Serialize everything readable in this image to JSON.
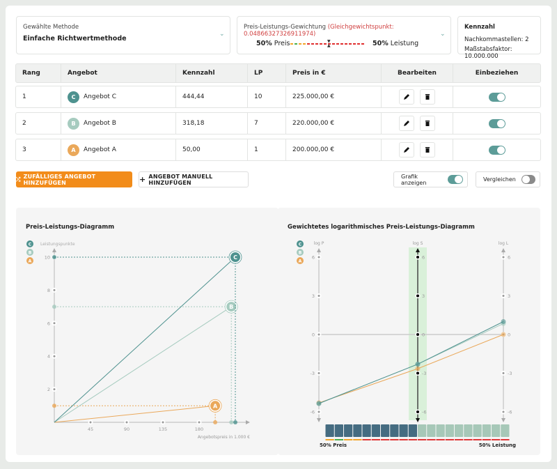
{
  "method": {
    "label": "Gewählte Methode",
    "value": "Einfache Richtwertmethode"
  },
  "weighting": {
    "label": "Preis-Leistungs-Gewichtung",
    "equilibrium": "(Gleichgewichtspunkt: 0.04866327326911974)",
    "price_pct": "50%",
    "price_label": "Preis",
    "perf_pct": "50%",
    "perf_label": "Leistung",
    "slider_value": 0.5
  },
  "kennzahl": {
    "title": "Kennzahl",
    "decimals": "Nachkommastellen: 2",
    "scale": "Maßstabsfaktor: 10.000.000"
  },
  "table": {
    "headers": [
      "Rang",
      "Angebot",
      "Kennzahl",
      "LP",
      "Preis in €",
      "Bearbeiten",
      "Einbeziehen"
    ],
    "rows": [
      {
        "rank": "1",
        "letter": "C",
        "name": "Angebot C",
        "kennzahl": "444,44",
        "lp": "10",
        "price": "225.000,00 €",
        "include": true,
        "color": "#4e928f"
      },
      {
        "rank": "2",
        "letter": "B",
        "name": "Angebot B",
        "kennzahl": "318,18",
        "lp": "7",
        "price": "220.000,00 €",
        "include": true,
        "color": "#a6cbbf"
      },
      {
        "rank": "3",
        "letter": "A",
        "name": "Angebot A",
        "kennzahl": "50,00",
        "lp": "1",
        "price": "200.000,00 €",
        "include": true,
        "color": "#eaa85a"
      }
    ]
  },
  "actions": {
    "random_label": "ZUFÄLLIGES ANGEBOT HINZUFÜGEN",
    "manual_label": "ANGEBOT MANUELL HINZUFÜGEN",
    "show_chart_label": "Grafik anzeigen",
    "show_chart_on": true,
    "compare_label": "Vergleichen",
    "compare_on": false
  },
  "colors": {
    "accent": "#f28c1a",
    "teal": "#5c9c98",
    "C": "#4e928f",
    "B": "#a6cbbf",
    "A": "#eaa85a"
  },
  "chart_data": [
    {
      "type": "scatter",
      "title": "Preis-Leistungs-Diagramm",
      "xlabel": "Angebotspreis in 1.000 €",
      "ylabel": "Leistungspunkte",
      "xticks": [
        "45",
        "90",
        "135",
        "180"
      ],
      "yticks": [
        "2",
        "4",
        "6",
        "8",
        "10"
      ],
      "xlim": [
        0,
        225
      ],
      "ylim": [
        0,
        10
      ],
      "legend": [
        "C",
        "B",
        "A"
      ],
      "legend_position": "top-left",
      "points": [
        {
          "label": "C",
          "x": 225,
          "y": 10
        },
        {
          "label": "B",
          "x": 220,
          "y": 7
        },
        {
          "label": "A",
          "x": 200,
          "y": 1
        }
      ]
    },
    {
      "type": "line",
      "title": "Gewichtetes logarithmisches Preis-Leistungs-Diagramm",
      "axes": [
        "log P",
        "log S",
        "log L"
      ],
      "yticks": [
        "6",
        "3",
        "0",
        "-3",
        "-6"
      ],
      "ylim": [
        -6,
        6
      ],
      "legend": [
        "C",
        "B",
        "A"
      ],
      "legend_position": "top-left",
      "series": [
        {
          "name": "C",
          "values": [
            -5.35,
            -2.3,
            1.0
          ]
        },
        {
          "name": "B",
          "values": [
            -5.35,
            -2.3,
            0.85
          ]
        },
        {
          "name": "A",
          "values": [
            -5.3,
            -2.65,
            0.0
          ]
        }
      ],
      "weight_bar": {
        "price_segments": 10,
        "total_segments": 20,
        "left_label": "50% Preis",
        "right_label": "50% Leistung"
      }
    }
  ]
}
